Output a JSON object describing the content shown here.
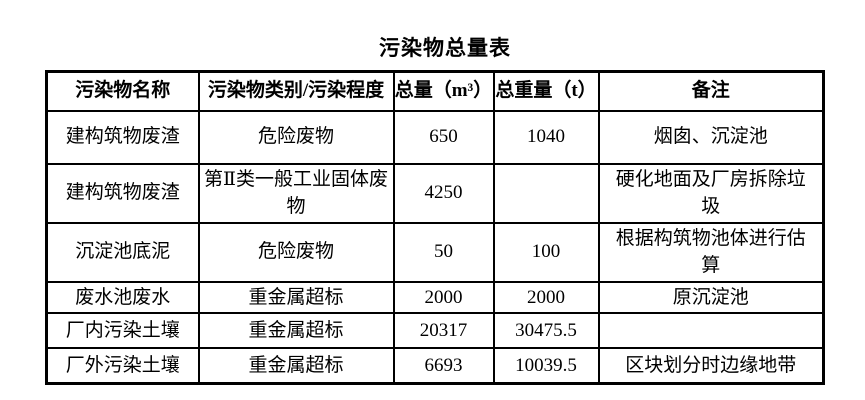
{
  "title": "污染物总量表",
  "table": {
    "headers": [
      "污染物名称",
      "污染物类别/污染程度",
      "总量（m³）",
      "总重量（t）",
      "备注"
    ],
    "rows": [
      [
        "建构筑物废渣",
        "危险废物",
        "650",
        "1040",
        "烟囱、沉淀池"
      ],
      [
        "建构筑物废渣",
        "第Ⅱ类一般工业固体废物",
        "4250",
        "",
        "硬化地面及厂房拆除垃圾"
      ],
      [
        "沉淀池底泥",
        "危险废物",
        "50",
        "100",
        "根据构筑物池体进行估算"
      ],
      [
        "废水池废水",
        "重金属超标",
        "2000",
        "2000",
        "原沉淀池"
      ],
      [
        "厂内污染土壤",
        "重金属超标",
        "20317",
        "30475.5",
        ""
      ],
      [
        "厂外污染土壤",
        "重金属超标",
        "6693",
        "10039.5",
        "区块划分时边缘地带"
      ]
    ]
  }
}
